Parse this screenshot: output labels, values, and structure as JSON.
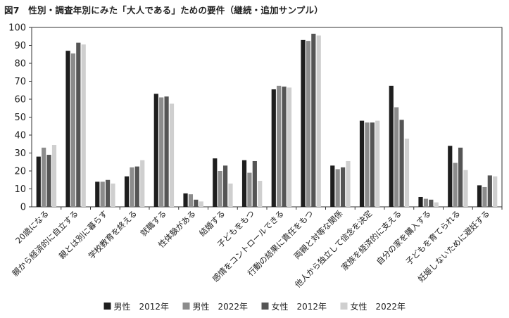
{
  "figure": {
    "title": "図7　性別・調査年別にみた「大人である」ための要件（継続・追加サンプル）"
  },
  "colors": {
    "male_2012": "#1e1e1e",
    "male_2022": "#8c8c8c",
    "female_2012": "#555555",
    "female_2022": "#cfcfcf"
  },
  "chart_data": {
    "type": "bar",
    "title": "図7　性別・調査年別にみた「大人である」ための要件（継続・追加サンプル）",
    "xlabel": "",
    "ylabel": "",
    "ylim": [
      0,
      100
    ],
    "yticks": [
      0,
      10,
      20,
      30,
      40,
      50,
      60,
      70,
      80,
      90,
      100
    ],
    "grid": false,
    "legend_position": "bottom",
    "categories": [
      "20歳になる",
      "親から経済的に自立する",
      "親とは別に暮らす",
      "学校教育を終える",
      "就職する",
      "性体験がある",
      "結婚する",
      "子どもをもつ",
      "感情をコントロールできる",
      "行動の結果に責任をもつ",
      "両親と対等な関係",
      "他人から独立して信念を決定",
      "家族を経済的に支える",
      "自分の家を購入する",
      "子どもを育てられる",
      "妊娠しないために避妊する"
    ],
    "series": [
      {
        "name": "男性　2012年",
        "color": "#1e1e1e",
        "values": [
          28,
          87,
          14,
          17,
          63,
          7.5,
          27,
          26,
          65.5,
          93,
          23,
          48,
          67.5,
          5.5,
          34,
          12
        ]
      },
      {
        "name": "男性　2022年",
        "color": "#8c8c8c",
        "values": [
          33,
          85.5,
          14,
          22,
          61,
          7,
          20,
          19,
          67.5,
          92.5,
          21,
          47,
          55.5,
          4.5,
          24.5,
          11
        ]
      },
      {
        "name": "女性　2012年",
        "color": "#555555",
        "values": [
          29,
          91.5,
          15,
          22.5,
          61.5,
          4,
          23,
          25.5,
          67,
          96.5,
          22,
          47,
          48.5,
          4,
          33,
          17.5
        ]
      },
      {
        "name": "女性　2022年",
        "color": "#cfcfcf",
        "values": [
          34.5,
          90.5,
          13,
          26,
          57.5,
          3,
          13,
          14.5,
          66.5,
          95.5,
          25.5,
          48,
          38,
          2.5,
          20.5,
          17
        ]
      }
    ]
  }
}
